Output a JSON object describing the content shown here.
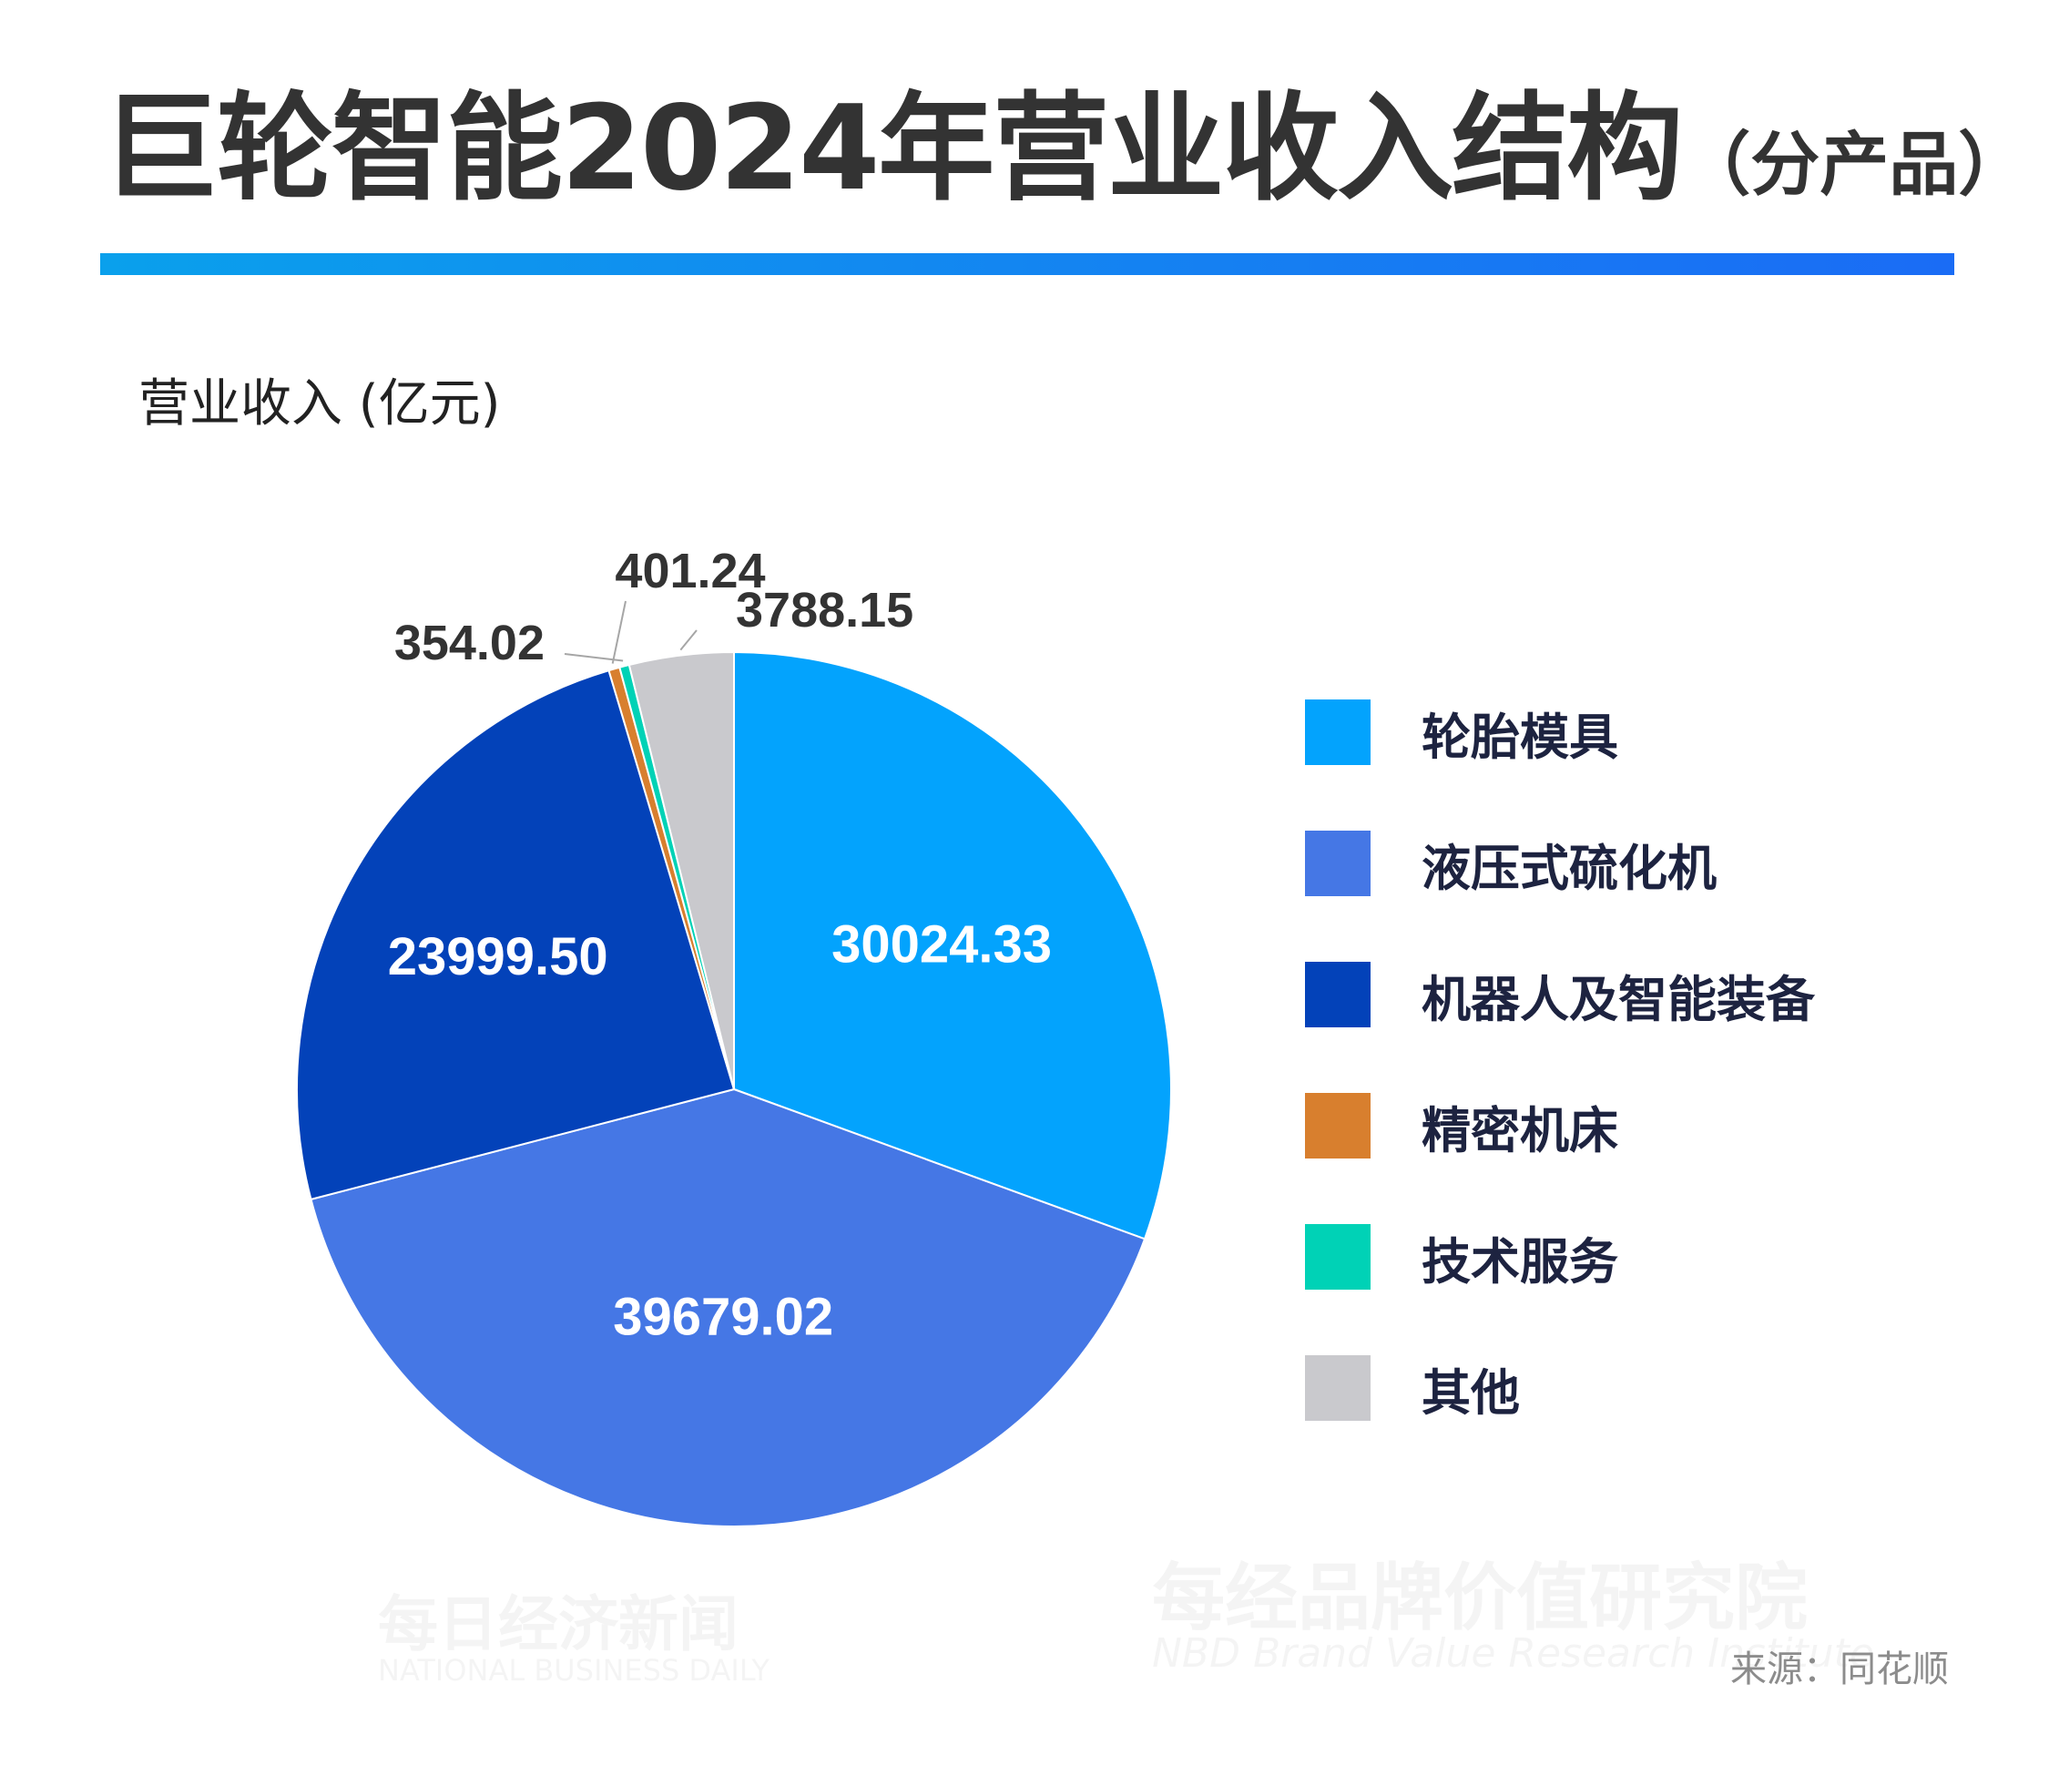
{
  "title": {
    "main": "巨轮智能2024年营业收入结构",
    "paren": "（分产品）"
  },
  "unit_label": "营业收入 (亿元)",
  "source": "来源：同花顺",
  "watermark": {
    "brand_cn": "每日经济新闻",
    "brand_en": "NATIONAL BUSINESS DAILY",
    "institute_cn": "每经品牌价值研究院",
    "institute_en": "NBD Brand Value Research Institute"
  },
  "colors": {
    "title": "#333333",
    "rule": "#1580f2",
    "legend_text": "#1d2340"
  },
  "chart_data": {
    "type": "pie",
    "title": "巨轮智能2024年营业收入结构（分产品）",
    "unit": "营业收入 (亿元)",
    "legend_position": "right",
    "start_angle": "12 o'clock, clockwise",
    "categories": [
      "轮胎模具",
      "液压式硫化机",
      "机器人及智能装备",
      "精密机床",
      "技术服务",
      "其他"
    ],
    "values": [
      30024.33,
      39679.02,
      23999.5,
      401.24,
      354.02,
      3788.15
    ],
    "value_labels": [
      "30024.33",
      "39679.02",
      "23999.50",
      "401.24",
      "354.02",
      "3788.15"
    ],
    "colors": [
      "#03a3fd",
      "#4577e5",
      "#0342b9",
      "#d87f2e",
      "#00d2b6",
      "#c9c9cd"
    ]
  }
}
